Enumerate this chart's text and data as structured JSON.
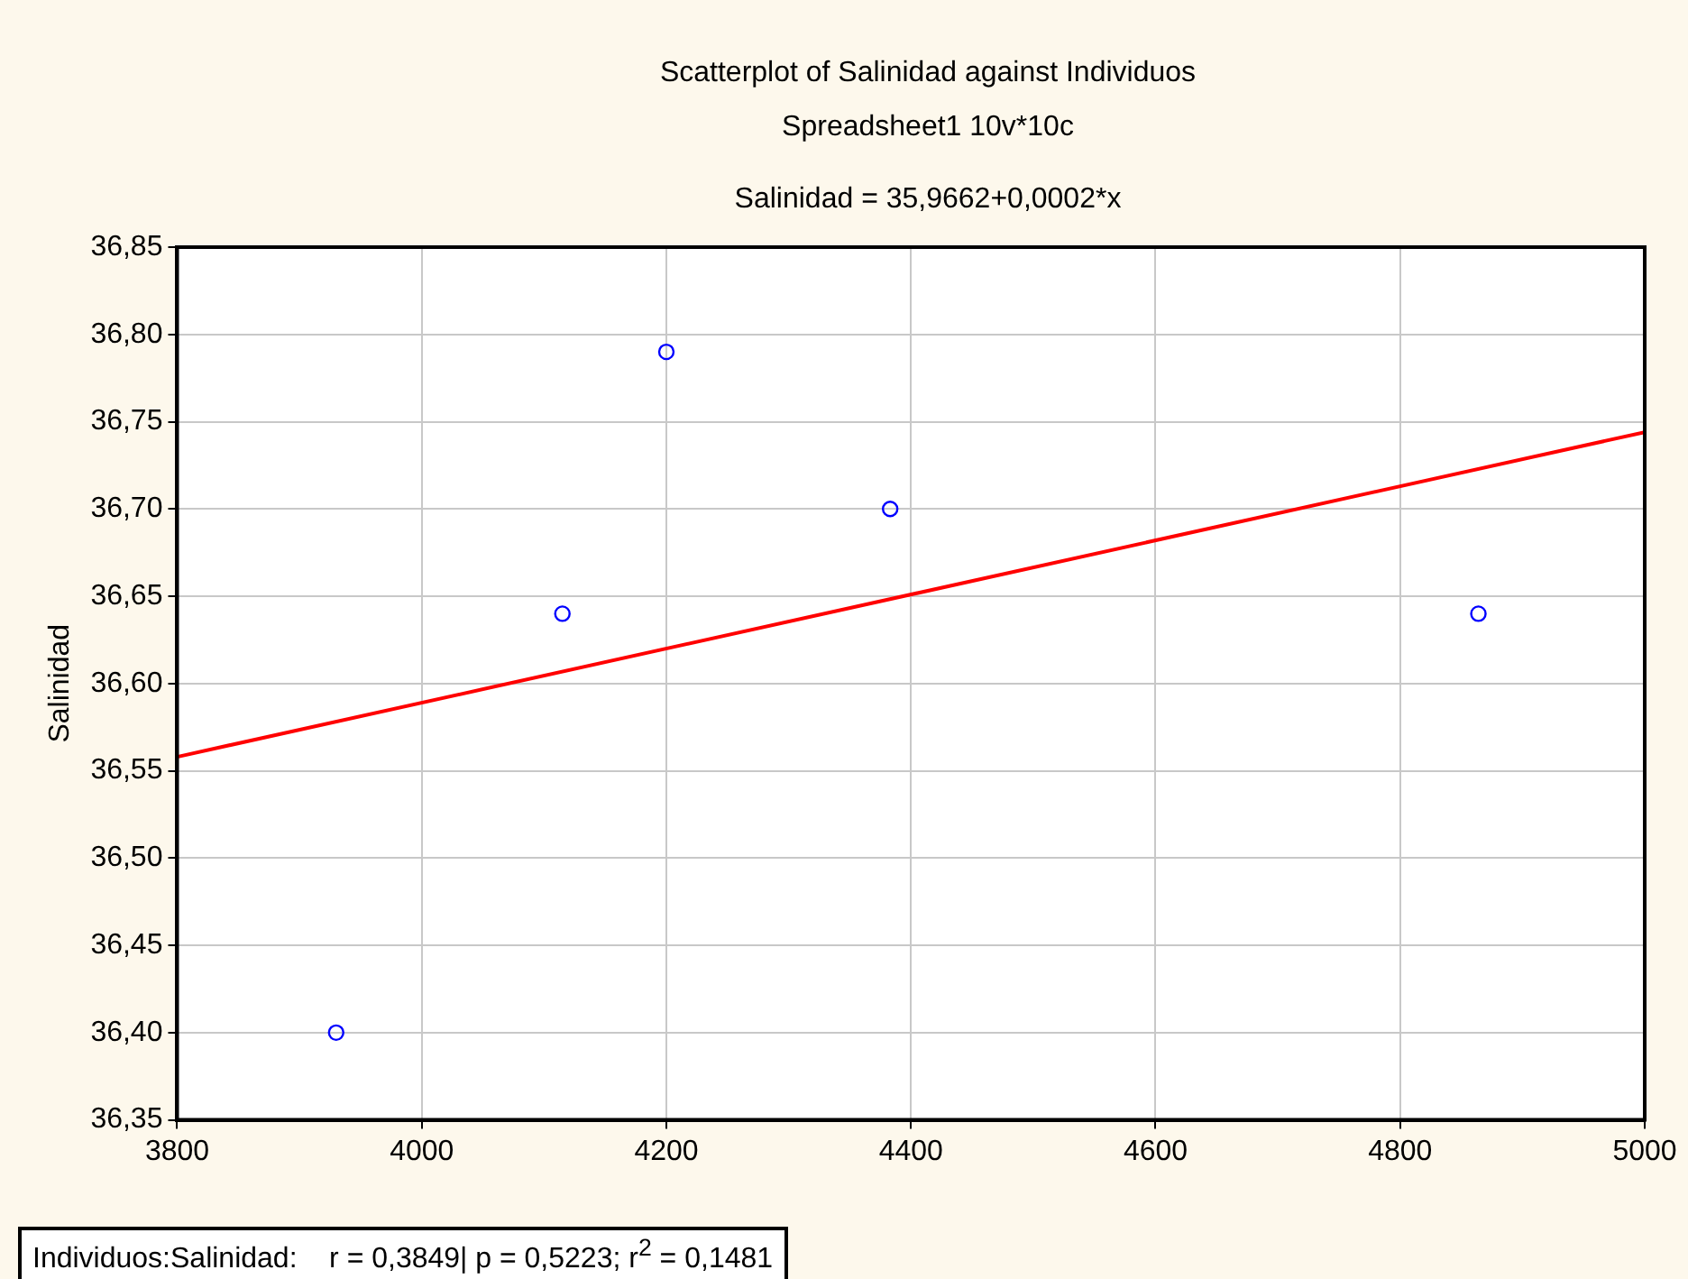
{
  "chart_data": {
    "type": "scatter",
    "title": "Scatterplot of Salinidad against Individuos",
    "subtitle": "Spreadsheet1 10v*10c",
    "ylabel": "Salinidad",
    "annotations": [
      "Salinidad = 35,9662+0,0002*x",
      "Individuos:Salinidad:    r = 0,3849| p = 0,5223; r$^{2}$ = 0,1481"
    ],
    "series": [
      {
        "color": "#0000ff",
        "x": [
          3930,
          4115,
          4200,
          4383,
          4864
        ],
        "values": [
          36.4,
          36.64,
          36.79,
          36.7,
          36.64
        ]
      },
      {
        "type": "line",
        "marker": "none",
        "color": "#ff0000",
        "x": [
          3800,
          5000
        ],
        "values": [
          36.558,
          36.744
        ]
      }
    ],
    "marker": "circle",
    "grid": true,
    "legend": false,
    "xlim": [
      3800,
      5000
    ],
    "xticks": [
      3800,
      4000,
      4200,
      4400,
      4600,
      4800,
      5000
    ],
    "ylim": [
      36.35,
      36.85
    ],
    "yticks": [
      {
        "value": 36.35,
        "label": "36,35"
      },
      {
        "value": 36.4,
        "label": "36,40"
      },
      {
        "value": 36.45,
        "label": "36,45"
      },
      {
        "value": 36.5,
        "label": "36,50"
      },
      {
        "value": 36.55,
        "label": "36,55"
      },
      {
        "value": 36.6,
        "label": "36,60"
      },
      {
        "value": 36.65,
        "label": "36,65"
      },
      {
        "value": 36.7,
        "label": "36,70"
      },
      {
        "value": 36.75,
        "label": "36,75"
      },
      {
        "value": 36.8,
        "label": "36,80"
      },
      {
        "value": 36.85,
        "label": "36,85"
      }
    ]
  }
}
